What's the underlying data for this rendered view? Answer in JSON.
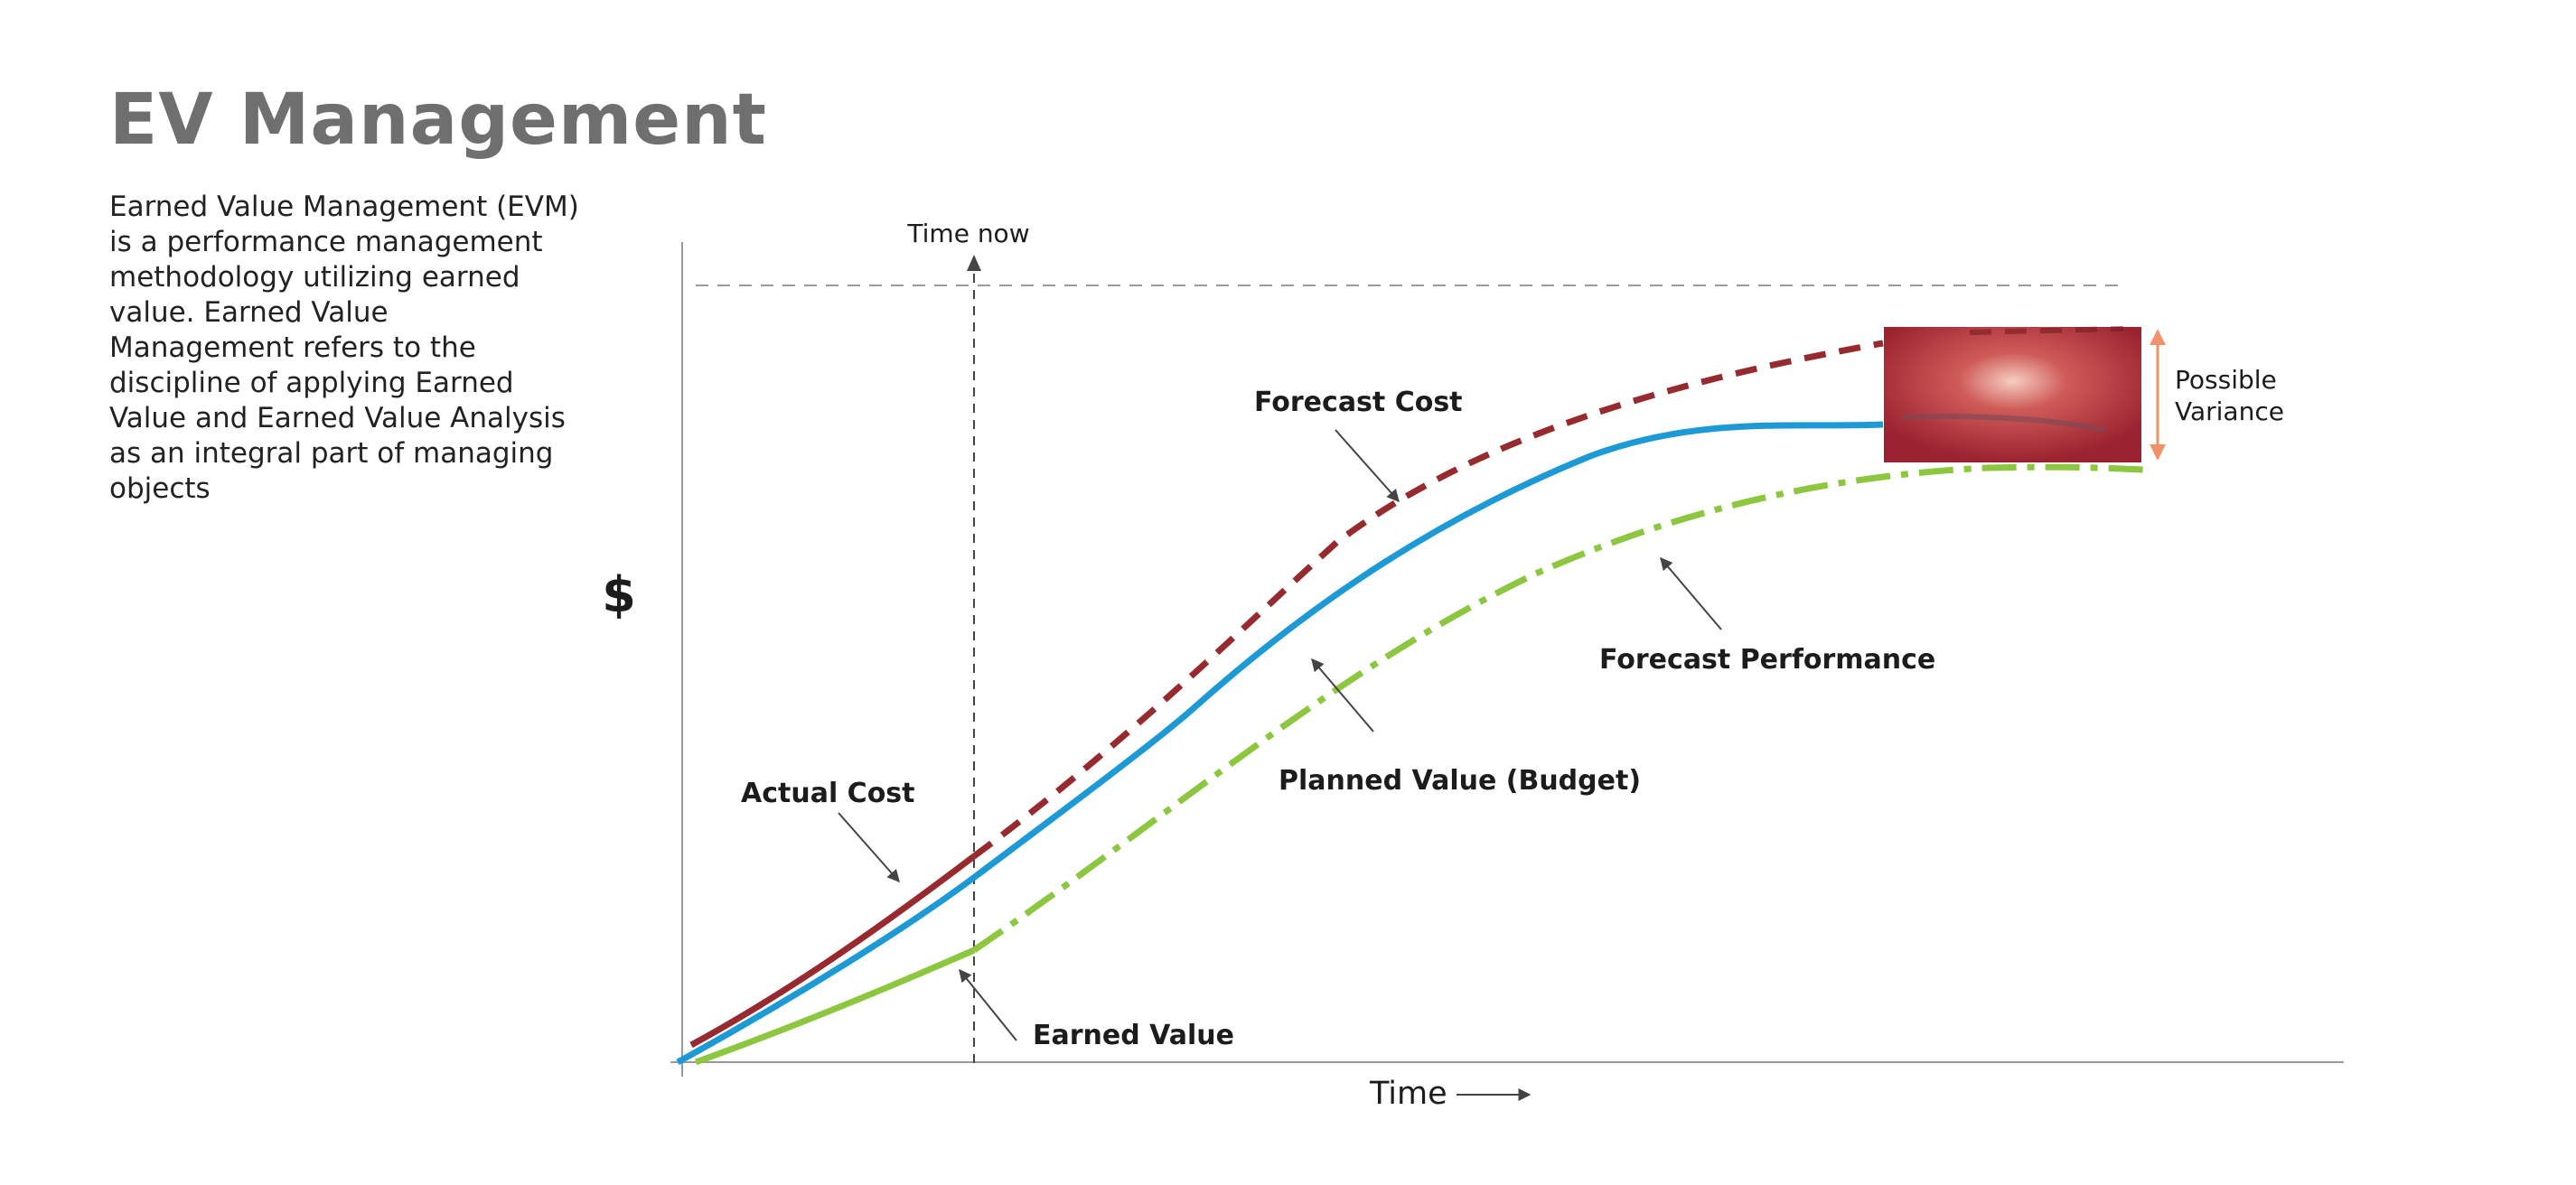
{
  "title": "EV Management",
  "description": "Earned Value Management (EVM) is a performance management methodology utilizing earned value. Earned Value Management refers to the discipline of applying Earned Value and Earned Value Analysis as an integral part of managing objects",
  "labels": {
    "y_axis": "$",
    "x_axis": "Time",
    "time_now": "Time now",
    "forecast_cost": "Forecast Cost",
    "forecast_performance": "Forecast Performance",
    "planned_value": "Planned Value (Budget)",
    "actual_cost": "Actual Cost",
    "earned_value": "Earned Value",
    "possible_variance_line1": "Possible",
    "possible_variance_line2": "Variance"
  },
  "colors": {
    "actual_cost": "#962a2e",
    "planned_value": "#1d9ad6",
    "earned_value": "#8dc63f",
    "variance_box": "#9b2230",
    "variance_arrow": "#f0916a",
    "axis": "#999999",
    "title": "#6f6f6f"
  }
}
